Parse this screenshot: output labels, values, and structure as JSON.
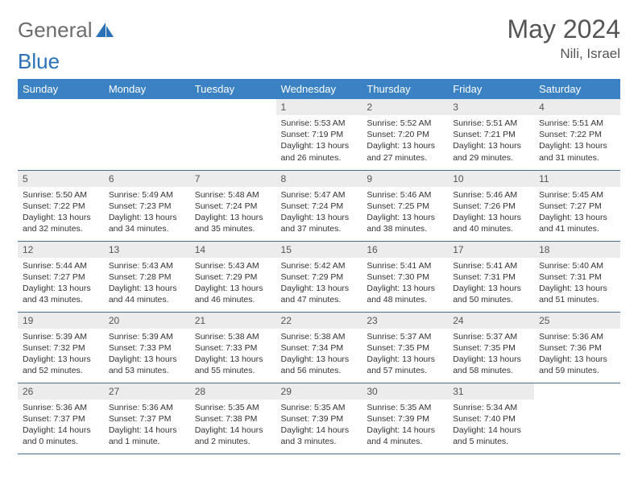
{
  "logo": {
    "text1": "General",
    "text2": "Blue"
  },
  "title": "May 2024",
  "location": "Nili, Israel",
  "colors": {
    "header_bg": "#3b82c4",
    "header_fg": "#ffffff",
    "daynum_bg": "#ececec",
    "row_border": "#4a6a8a",
    "accent": "#2a71b8"
  },
  "weekdays": [
    "Sunday",
    "Monday",
    "Tuesday",
    "Wednesday",
    "Thursday",
    "Friday",
    "Saturday"
  ],
  "weeks": [
    [
      {
        "n": "",
        "sr": "",
        "ss": "",
        "dl": ""
      },
      {
        "n": "",
        "sr": "",
        "ss": "",
        "dl": ""
      },
      {
        "n": "",
        "sr": "",
        "ss": "",
        "dl": ""
      },
      {
        "n": "1",
        "sr": "Sunrise: 5:53 AM",
        "ss": "Sunset: 7:19 PM",
        "dl": "Daylight: 13 hours and 26 minutes."
      },
      {
        "n": "2",
        "sr": "Sunrise: 5:52 AM",
        "ss": "Sunset: 7:20 PM",
        "dl": "Daylight: 13 hours and 27 minutes."
      },
      {
        "n": "3",
        "sr": "Sunrise: 5:51 AM",
        "ss": "Sunset: 7:21 PM",
        "dl": "Daylight: 13 hours and 29 minutes."
      },
      {
        "n": "4",
        "sr": "Sunrise: 5:51 AM",
        "ss": "Sunset: 7:22 PM",
        "dl": "Daylight: 13 hours and 31 minutes."
      }
    ],
    [
      {
        "n": "5",
        "sr": "Sunrise: 5:50 AM",
        "ss": "Sunset: 7:22 PM",
        "dl": "Daylight: 13 hours and 32 minutes."
      },
      {
        "n": "6",
        "sr": "Sunrise: 5:49 AM",
        "ss": "Sunset: 7:23 PM",
        "dl": "Daylight: 13 hours and 34 minutes."
      },
      {
        "n": "7",
        "sr": "Sunrise: 5:48 AM",
        "ss": "Sunset: 7:24 PM",
        "dl": "Daylight: 13 hours and 35 minutes."
      },
      {
        "n": "8",
        "sr": "Sunrise: 5:47 AM",
        "ss": "Sunset: 7:24 PM",
        "dl": "Daylight: 13 hours and 37 minutes."
      },
      {
        "n": "9",
        "sr": "Sunrise: 5:46 AM",
        "ss": "Sunset: 7:25 PM",
        "dl": "Daylight: 13 hours and 38 minutes."
      },
      {
        "n": "10",
        "sr": "Sunrise: 5:46 AM",
        "ss": "Sunset: 7:26 PM",
        "dl": "Daylight: 13 hours and 40 minutes."
      },
      {
        "n": "11",
        "sr": "Sunrise: 5:45 AM",
        "ss": "Sunset: 7:27 PM",
        "dl": "Daylight: 13 hours and 41 minutes."
      }
    ],
    [
      {
        "n": "12",
        "sr": "Sunrise: 5:44 AM",
        "ss": "Sunset: 7:27 PM",
        "dl": "Daylight: 13 hours and 43 minutes."
      },
      {
        "n": "13",
        "sr": "Sunrise: 5:43 AM",
        "ss": "Sunset: 7:28 PM",
        "dl": "Daylight: 13 hours and 44 minutes."
      },
      {
        "n": "14",
        "sr": "Sunrise: 5:43 AM",
        "ss": "Sunset: 7:29 PM",
        "dl": "Daylight: 13 hours and 46 minutes."
      },
      {
        "n": "15",
        "sr": "Sunrise: 5:42 AM",
        "ss": "Sunset: 7:29 PM",
        "dl": "Daylight: 13 hours and 47 minutes."
      },
      {
        "n": "16",
        "sr": "Sunrise: 5:41 AM",
        "ss": "Sunset: 7:30 PM",
        "dl": "Daylight: 13 hours and 48 minutes."
      },
      {
        "n": "17",
        "sr": "Sunrise: 5:41 AM",
        "ss": "Sunset: 7:31 PM",
        "dl": "Daylight: 13 hours and 50 minutes."
      },
      {
        "n": "18",
        "sr": "Sunrise: 5:40 AM",
        "ss": "Sunset: 7:31 PM",
        "dl": "Daylight: 13 hours and 51 minutes."
      }
    ],
    [
      {
        "n": "19",
        "sr": "Sunrise: 5:39 AM",
        "ss": "Sunset: 7:32 PM",
        "dl": "Daylight: 13 hours and 52 minutes."
      },
      {
        "n": "20",
        "sr": "Sunrise: 5:39 AM",
        "ss": "Sunset: 7:33 PM",
        "dl": "Daylight: 13 hours and 53 minutes."
      },
      {
        "n": "21",
        "sr": "Sunrise: 5:38 AM",
        "ss": "Sunset: 7:33 PM",
        "dl": "Daylight: 13 hours and 55 minutes."
      },
      {
        "n": "22",
        "sr": "Sunrise: 5:38 AM",
        "ss": "Sunset: 7:34 PM",
        "dl": "Daylight: 13 hours and 56 minutes."
      },
      {
        "n": "23",
        "sr": "Sunrise: 5:37 AM",
        "ss": "Sunset: 7:35 PM",
        "dl": "Daylight: 13 hours and 57 minutes."
      },
      {
        "n": "24",
        "sr": "Sunrise: 5:37 AM",
        "ss": "Sunset: 7:35 PM",
        "dl": "Daylight: 13 hours and 58 minutes."
      },
      {
        "n": "25",
        "sr": "Sunrise: 5:36 AM",
        "ss": "Sunset: 7:36 PM",
        "dl": "Daylight: 13 hours and 59 minutes."
      }
    ],
    [
      {
        "n": "26",
        "sr": "Sunrise: 5:36 AM",
        "ss": "Sunset: 7:37 PM",
        "dl": "Daylight: 14 hours and 0 minutes."
      },
      {
        "n": "27",
        "sr": "Sunrise: 5:36 AM",
        "ss": "Sunset: 7:37 PM",
        "dl": "Daylight: 14 hours and 1 minute."
      },
      {
        "n": "28",
        "sr": "Sunrise: 5:35 AM",
        "ss": "Sunset: 7:38 PM",
        "dl": "Daylight: 14 hours and 2 minutes."
      },
      {
        "n": "29",
        "sr": "Sunrise: 5:35 AM",
        "ss": "Sunset: 7:39 PM",
        "dl": "Daylight: 14 hours and 3 minutes."
      },
      {
        "n": "30",
        "sr": "Sunrise: 5:35 AM",
        "ss": "Sunset: 7:39 PM",
        "dl": "Daylight: 14 hours and 4 minutes."
      },
      {
        "n": "31",
        "sr": "Sunrise: 5:34 AM",
        "ss": "Sunset: 7:40 PM",
        "dl": "Daylight: 14 hours and 5 minutes."
      },
      {
        "n": "",
        "sr": "",
        "ss": "",
        "dl": ""
      }
    ]
  ]
}
